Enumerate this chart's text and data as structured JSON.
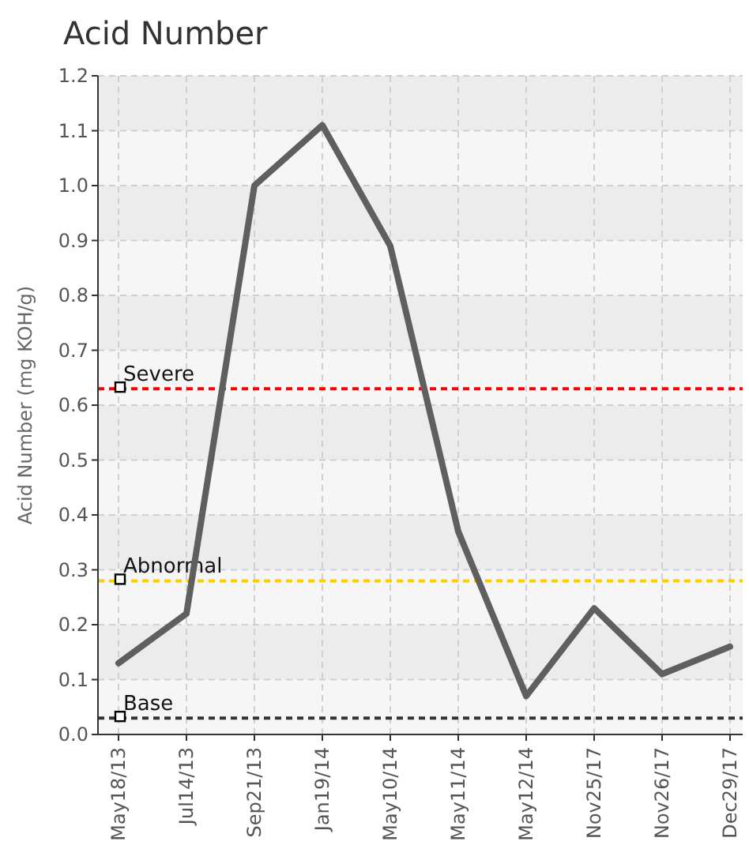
{
  "chart_data": {
    "type": "line",
    "title": "Acid Number",
    "ylabel": "Acid Number (mg KOH/g)",
    "categories": [
      "May18/13",
      "Jul14/13",
      "Sep21/13",
      "Jan19/14",
      "May10/14",
      "May11/14",
      "May12/14",
      "Nov25/17",
      "Nov26/17",
      "Dec29/17"
    ],
    "series": [
      {
        "color": "#5f5f5f",
        "values": [
          0.13,
          0.22,
          1.0,
          1.11,
          0.89,
          0.37,
          0.07,
          0.23,
          0.11,
          0.16
        ]
      }
    ],
    "ylim": [
      0,
      1.2
    ],
    "yticks": [
      {
        "value": 0,
        "label": "0.0"
      },
      {
        "value": 0.1,
        "label": "0.1"
      },
      {
        "value": 0.2,
        "label": "0.2"
      },
      {
        "value": 0.3,
        "label": "0.3"
      },
      {
        "value": 0.4,
        "label": "0.4"
      },
      {
        "value": 0.5,
        "label": "0.5"
      },
      {
        "value": 0.6,
        "label": "0.6"
      },
      {
        "value": 0.7,
        "label": "0.7"
      },
      {
        "value": 0.8,
        "label": "0.8"
      },
      {
        "value": 0.9,
        "label": "0.9"
      },
      {
        "value": 1,
        "label": "1.0"
      },
      {
        "value": 1.1,
        "label": "1.1"
      },
      {
        "value": 1.2,
        "label": "1.2"
      }
    ],
    "ref_lines": [
      {
        "axis": "y",
        "value": 0.63,
        "label": "Severe",
        "color": "#ff0000",
        "line_style": "dashed"
      },
      {
        "axis": "y",
        "value": 0.28,
        "label": "Abnormal",
        "color": "#ffcc00",
        "line_style": "dashed"
      },
      {
        "axis": "y",
        "value": 0.03,
        "label": "Base",
        "color": "#333333",
        "line_style": "dashed"
      }
    ],
    "grid": true,
    "marker": "none",
    "line_style": "solid"
  }
}
